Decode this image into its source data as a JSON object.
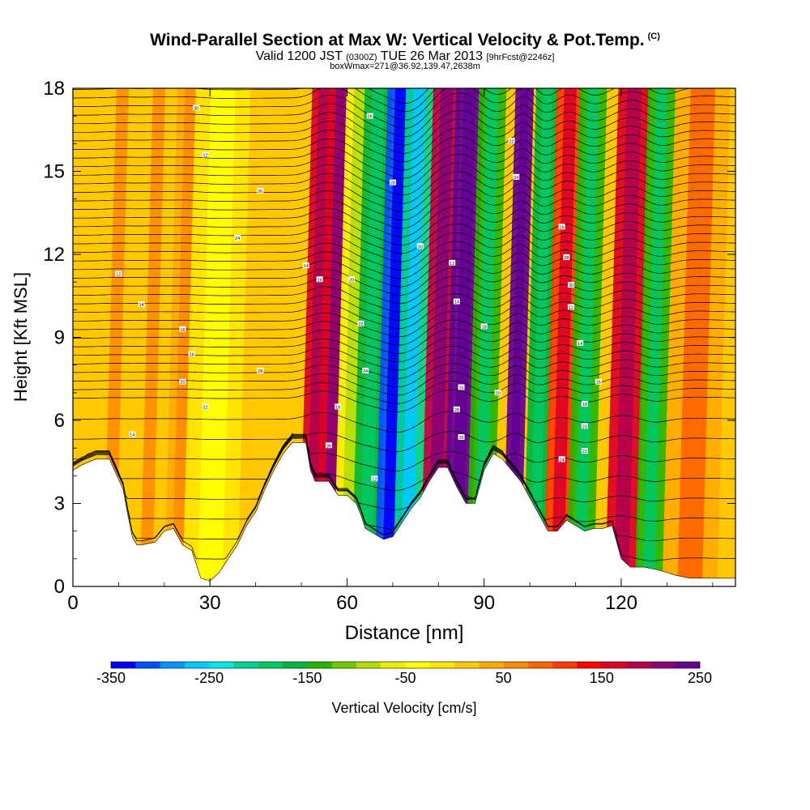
{
  "title": {
    "main": "Wind-Parallel Section at Max W: Vertical Velocity & Pot.Temp.",
    "copyright": "(C)",
    "valid_prefix": "Valid 1200 JST",
    "valid_zulu": "(0300Z)",
    "valid_date": "TUE 26 Mar 2013",
    "forecast": "[9hrFcst@2246z]",
    "box_info": "boxWmax=271@36.92,139.47,2638m"
  },
  "chart_data": {
    "type": "heatmap",
    "xlabel": "Distance [nm]",
    "ylabel": "Height [Kft MSL]",
    "xlim": [
      0,
      145
    ],
    "ylim": [
      0,
      18
    ],
    "x_ticks": [
      0,
      30,
      60,
      90,
      120
    ],
    "y_ticks": [
      0,
      3,
      6,
      9,
      12,
      15,
      18
    ],
    "colorbar": {
      "label": "Vertical Velocity [cm/s]",
      "range": [
        -350,
        250
      ],
      "tick_values": [
        -350,
        -250,
        -150,
        -50,
        50,
        150,
        250
      ],
      "colors": [
        "#0000ff",
        "#0050ff",
        "#0096ff",
        "#00c8ff",
        "#00e6e6",
        "#00d296",
        "#00c864",
        "#00b43c",
        "#28b400",
        "#6ec800",
        "#b4dc00",
        "#e6f000",
        "#ffff00",
        "#ffe600",
        "#ffc800",
        "#ffaa00",
        "#ff8c00",
        "#ff6400",
        "#ff3c00",
        "#ff0000",
        "#dc0028",
        "#b40050",
        "#8c0078",
        "#640096"
      ]
    },
    "velocity_bands": [
      {
        "x": 8,
        "w": 3,
        "value": 20
      },
      {
        "x": 16,
        "w": 3,
        "value": 20
      },
      {
        "x": 23,
        "w": 3,
        "value": 25
      },
      {
        "x": 30,
        "w": 6,
        "value": -10
      },
      {
        "x": 52,
        "w": 2.5,
        "value": 150
      },
      {
        "x": 56,
        "w": 3,
        "value": 170
      },
      {
        "x": 60,
        "w": 3,
        "value": -50
      },
      {
        "x": 64,
        "w": 3,
        "value": -160
      },
      {
        "x": 69,
        "w": 3,
        "value": -320
      },
      {
        "x": 73,
        "w": 3,
        "value": -220
      },
      {
        "x": 79,
        "w": 3,
        "value": 180
      },
      {
        "x": 84,
        "w": 3,
        "value": 230
      },
      {
        "x": 89,
        "w": 3,
        "value": -140
      },
      {
        "x": 96,
        "w": 2,
        "value": 240
      },
      {
        "x": 101,
        "w": 2.5,
        "value": -160
      },
      {
        "x": 106,
        "w": 3,
        "value": 120
      },
      {
        "x": 111,
        "w": 3,
        "value": -150
      },
      {
        "x": 120,
        "w": 3.5,
        "value": 150
      },
      {
        "x": 126,
        "w": 3,
        "value": -140
      },
      {
        "x": 135,
        "w": 6,
        "value": 40
      }
    ],
    "terrain_height": [
      [
        0,
        4.2
      ],
      [
        2,
        4.4
      ],
      [
        5,
        4.6
      ],
      [
        8,
        4.6
      ],
      [
        11,
        3.5
      ],
      [
        12,
        2.6
      ],
      [
        13,
        1.8
      ],
      [
        14,
        1.5
      ],
      [
        15,
        1.5
      ],
      [
        18,
        1.6
      ],
      [
        20,
        2.0
      ],
      [
        22,
        2.1
      ],
      [
        24,
        1.5
      ],
      [
        26,
        1.3
      ],
      [
        27,
        0.8
      ],
      [
        28,
        0.3
      ],
      [
        30,
        0.2
      ],
      [
        32,
        0.5
      ],
      [
        34,
        1.0
      ],
      [
        36,
        1.5
      ],
      [
        38,
        2.2
      ],
      [
        40,
        2.7
      ],
      [
        42,
        3.5
      ],
      [
        44,
        4.2
      ],
      [
        46,
        4.8
      ],
      [
        48,
        5.2
      ],
      [
        51,
        5.2
      ],
      [
        52,
        4.2
      ],
      [
        53,
        3.8
      ],
      [
        56,
        3.8
      ],
      [
        58,
        3.3
      ],
      [
        60,
        3.3
      ],
      [
        62,
        3.0
      ],
      [
        63,
        2.6
      ],
      [
        64,
        2.1
      ],
      [
        66,
        1.9
      ],
      [
        68,
        1.7
      ],
      [
        70,
        1.8
      ],
      [
        72,
        2.3
      ],
      [
        74,
        2.8
      ],
      [
        76,
        3.2
      ],
      [
        78,
        3.8
      ],
      [
        80,
        4.3
      ],
      [
        82,
        4.3
      ],
      [
        84,
        3.6
      ],
      [
        86,
        3.0
      ],
      [
        88,
        3.0
      ],
      [
        90,
        4.2
      ],
      [
        92,
        4.8
      ],
      [
        94,
        4.6
      ],
      [
        96,
        4.2
      ],
      [
        98,
        3.8
      ],
      [
        100,
        3.2
      ],
      [
        102,
        2.6
      ],
      [
        104,
        2.0
      ],
      [
        106,
        2.0
      ],
      [
        108,
        2.4
      ],
      [
        110,
        2.2
      ],
      [
        112,
        2.0
      ],
      [
        114,
        2.1
      ],
      [
        116,
        2.1
      ],
      [
        118,
        2.2
      ],
      [
        120,
        1.0
      ],
      [
        122,
        0.7
      ],
      [
        125,
        0.7
      ],
      [
        128,
        0.6
      ],
      [
        130,
        0.5
      ],
      [
        132,
        0.4
      ],
      [
        135,
        0.3
      ],
      [
        140,
        0.3
      ],
      [
        145,
        0.3
      ]
    ],
    "isentrope_count": 46,
    "isentrope_labels": [
      "12",
      "14",
      "16",
      "18",
      "20",
      "22",
      "24",
      "26",
      "28",
      "30"
    ]
  }
}
